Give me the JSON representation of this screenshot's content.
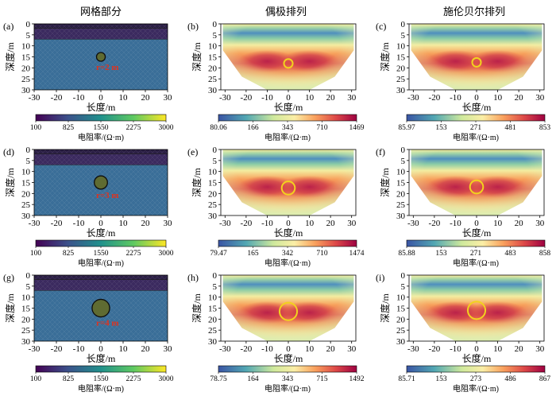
{
  "columns": [
    "网格部分",
    "偶极排列",
    "施伦贝尔排列"
  ],
  "chart_data": [
    {
      "id": "a",
      "type": "heatmap",
      "panel_label": "(a)",
      "kind": "mesh",
      "xlabel": "长度/m",
      "ylabel": "深度/m",
      "xlim": [
        -30,
        30
      ],
      "ylim": [
        0,
        30
      ],
      "xticks": [
        -30,
        -20,
        -10,
        0,
        10,
        20,
        30
      ],
      "yticks": [
        0,
        5,
        10,
        15,
        20,
        25,
        30
      ],
      "layers": [
        {
          "top": 0,
          "bottom": 2
        },
        {
          "top": 2,
          "bottom": 7
        },
        {
          "top": 7,
          "bottom": 30
        }
      ],
      "anomaly": {
        "x": 0,
        "y": 15,
        "r": 2
      },
      "annotation": "r=2 m",
      "colorbar": {
        "ticks": [
          "100",
          "825",
          "1550",
          "2275",
          "3000"
        ],
        "label": "电阻率/(Ω·m)",
        "palette": "viridis"
      }
    },
    {
      "id": "b",
      "type": "heatmap",
      "panel_label": "(b)",
      "kind": "inversion",
      "xlabel": "长度/m",
      "ylabel": "深度/m",
      "xlim": [
        -32,
        32
      ],
      "ylim": [
        0,
        30
      ],
      "xticks": [
        -30,
        -20,
        -10,
        0,
        10,
        20,
        30
      ],
      "yticks": [
        0,
        5,
        10,
        15,
        20,
        25,
        30
      ],
      "anomaly": {
        "x": 0,
        "y": 18,
        "r": 2
      },
      "colorbar": {
        "ticks": [
          "80.06",
          "166",
          "343",
          "710",
          "1469"
        ],
        "label": "电阻率/(Ω·m)",
        "palette": "spectral"
      }
    },
    {
      "id": "c",
      "type": "heatmap",
      "panel_label": "(c)",
      "kind": "inversion",
      "xlabel": "长度/m",
      "ylabel": "深度/m",
      "xlim": [
        -32,
        32
      ],
      "ylim": [
        0,
        30
      ],
      "xticks": [
        -30,
        -20,
        -10,
        0,
        10,
        20,
        30
      ],
      "yticks": [
        0,
        5,
        10,
        15,
        20,
        25,
        30
      ],
      "anomaly": {
        "x": 0,
        "y": 17.5,
        "r": 2
      },
      "colorbar": {
        "ticks": [
          "85.97",
          "153",
          "271",
          "481",
          "853"
        ],
        "label": "电阻率/(Ω·m)",
        "palette": "spectral"
      }
    },
    {
      "id": "d",
      "type": "heatmap",
      "panel_label": "(d)",
      "kind": "mesh",
      "xlabel": "长度/m",
      "ylabel": "深度/m",
      "xlim": [
        -30,
        30
      ],
      "ylim": [
        0,
        30
      ],
      "xticks": [
        -30,
        -20,
        -10,
        0,
        10,
        20,
        30
      ],
      "yticks": [
        0,
        5,
        10,
        15,
        20,
        25,
        30
      ],
      "layers": [
        {
          "top": 0,
          "bottom": 2
        },
        {
          "top": 2,
          "bottom": 7
        },
        {
          "top": 7,
          "bottom": 30
        }
      ],
      "anomaly": {
        "x": 0,
        "y": 15,
        "r": 3
      },
      "annotation": "r=3 m",
      "colorbar": {
        "ticks": [
          "100",
          "825",
          "1550",
          "2275",
          "3000"
        ],
        "label": "电阻率/(Ω·m)",
        "palette": "viridis"
      }
    },
    {
      "id": "e",
      "type": "heatmap",
      "panel_label": "(e)",
      "kind": "inversion",
      "xlabel": "长度/m",
      "ylabel": "深度/m",
      "xlim": [
        -32,
        32
      ],
      "ylim": [
        0,
        30
      ],
      "xticks": [
        -30,
        -20,
        -10,
        0,
        10,
        20,
        30
      ],
      "yticks": [
        0,
        5,
        10,
        15,
        20,
        25,
        30
      ],
      "anomaly": {
        "x": 0,
        "y": 17.5,
        "r": 3
      },
      "colorbar": {
        "ticks": [
          "79.47",
          "165",
          "342",
          "710",
          "1474"
        ],
        "label": "电阻率/(Ω·m)",
        "palette": "spectral"
      }
    },
    {
      "id": "f",
      "type": "heatmap",
      "panel_label": "(f)",
      "kind": "inversion",
      "xlabel": "长度/m",
      "ylabel": "深度/m",
      "xlim": [
        -32,
        32
      ],
      "ylim": [
        0,
        30
      ],
      "xticks": [
        -30,
        -20,
        -10,
        0,
        10,
        20,
        30
      ],
      "yticks": [
        0,
        5,
        10,
        15,
        20,
        25,
        30
      ],
      "anomaly": {
        "x": 0,
        "y": 17,
        "r": 3
      },
      "colorbar": {
        "ticks": [
          "85.88",
          "153",
          "271",
          "483",
          "858"
        ],
        "label": "电阻率/(Ω·m)",
        "palette": "spectral"
      }
    },
    {
      "id": "g",
      "type": "heatmap",
      "panel_label": "(g)",
      "kind": "mesh",
      "xlabel": "长度/m",
      "ylabel": "深度/m",
      "xlim": [
        -30,
        30
      ],
      "ylim": [
        0,
        30
      ],
      "xticks": [
        -30,
        -20,
        -10,
        0,
        10,
        20,
        30
      ],
      "yticks": [
        0,
        5,
        10,
        15,
        20,
        25,
        30
      ],
      "layers": [
        {
          "top": 0,
          "bottom": 2
        },
        {
          "top": 2,
          "bottom": 7
        },
        {
          "top": 7,
          "bottom": 30
        }
      ],
      "anomaly": {
        "x": 0,
        "y": 15,
        "r": 4
      },
      "annotation": "r=4 m",
      "colorbar": {
        "ticks": [
          "100",
          "825",
          "1550",
          "2275",
          "3000"
        ],
        "label": "电阻率/(Ω·m)",
        "palette": "viridis"
      }
    },
    {
      "id": "h",
      "type": "heatmap",
      "panel_label": "(h)",
      "kind": "inversion",
      "xlabel": "长度/m",
      "ylabel": "深度/m",
      "xlim": [
        -32,
        32
      ],
      "ylim": [
        0,
        30
      ],
      "xticks": [
        -30,
        -20,
        -10,
        0,
        10,
        20,
        30
      ],
      "yticks": [
        0,
        5,
        10,
        15,
        20,
        25,
        30
      ],
      "anomaly": {
        "x": 0,
        "y": 16.5,
        "r": 4
      },
      "colorbar": {
        "ticks": [
          "78.75",
          "164",
          "343",
          "715",
          "1492"
        ],
        "label": "电阻率/(Ω·m)",
        "palette": "spectral"
      }
    },
    {
      "id": "i",
      "type": "heatmap",
      "panel_label": "(i)",
      "kind": "inversion",
      "xlabel": "长度/m",
      "ylabel": "深度/m",
      "xlim": [
        -32,
        32
      ],
      "ylim": [
        0,
        30
      ],
      "xticks": [
        -30,
        -20,
        -10,
        0,
        10,
        20,
        30
      ],
      "yticks": [
        0,
        5,
        10,
        15,
        20,
        25,
        30
      ],
      "anomaly": {
        "x": 0,
        "y": 16,
        "r": 4
      },
      "colorbar": {
        "ticks": [
          "85.71",
          "153",
          "273",
          "486",
          "867"
        ],
        "label": "电阻率/(Ω·m)",
        "palette": "spectral"
      }
    }
  ],
  "colors": {
    "anomaly_circle": "#f2d21e",
    "annotation": "#e0321e",
    "mesh_top": "#2b1f45",
    "mesh_layer": "#3b2a5f",
    "mesh_body": "#3a6e98"
  }
}
